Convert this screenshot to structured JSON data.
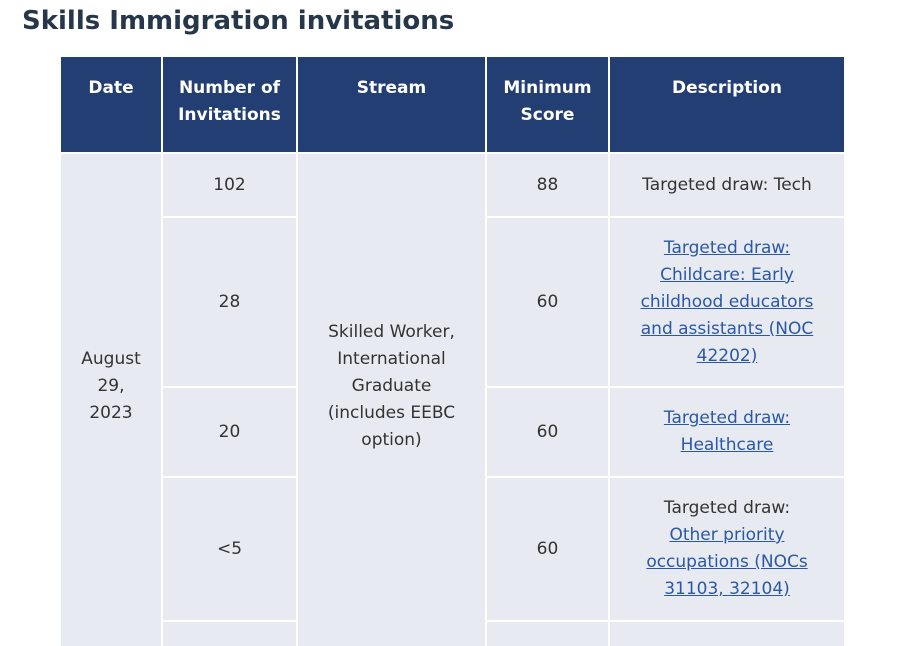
{
  "title": "Skills Immigration invitations",
  "table": {
    "headers": [
      "Date",
      "Number of Invitations",
      "Stream",
      "Minimum Score",
      "Description"
    ],
    "date": "August 29, 2023",
    "stream": "Skilled Worker, International Graduate (includes EEBC option)",
    "rows": [
      {
        "invitations": "102",
        "score": "88",
        "desc_prefix": "Targeted draw: Tech",
        "desc_link": ""
      },
      {
        "invitations": "28",
        "score": "60",
        "desc_prefix": "",
        "desc_link": "Targeted draw: Childcare: Early childhood educators and assistants (NOC 42202)"
      },
      {
        "invitations": "20",
        "score": "60",
        "desc_prefix": "",
        "desc_link": "Targeted draw: Healthcare"
      },
      {
        "invitations": "<5",
        "score": "60",
        "desc_prefix": "Targeted draw:",
        "desc_link": "Other priority occupations (NOCs 31103, 32104)"
      }
    ]
  },
  "colors": {
    "header_bg": "#233e72",
    "cell_bg": "#e7eaf0",
    "title": "#26374a",
    "link": "#2b58a6"
  }
}
